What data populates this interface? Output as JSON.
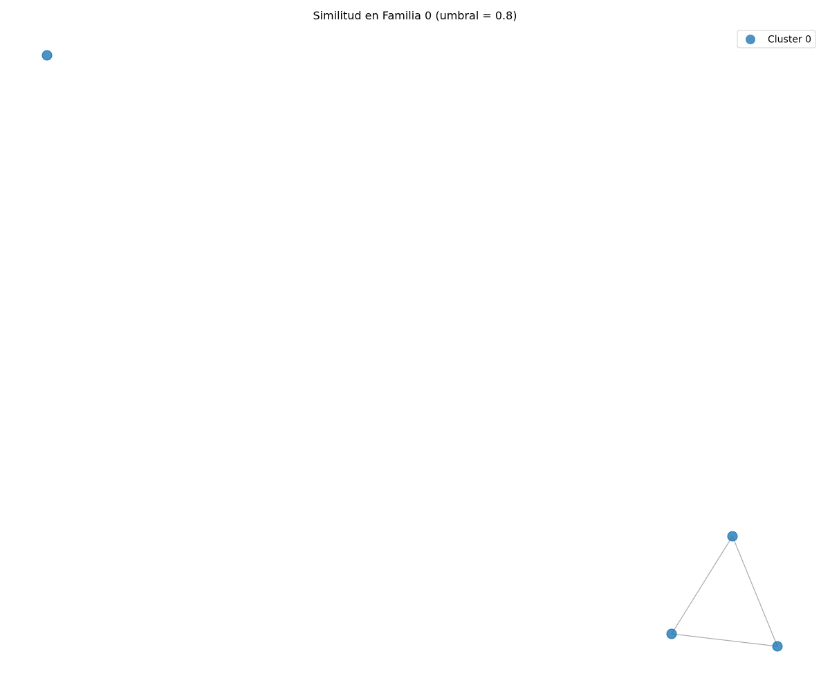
{
  "chart_data": {
    "type": "scatter",
    "title": "Similitud en Familia 0 (umbral = 0.8)",
    "grid": false,
    "legend_position": "top-right",
    "axes_visible": false,
    "node_color": "#1f77b4",
    "edge_color": "#aaaaaa",
    "series": [
      {
        "name": "Cluster 0",
        "color": "#1f77b4"
      }
    ],
    "nodes": [
      {
        "id": "n0",
        "cluster": "Cluster 0"
      },
      {
        "id": "n1",
        "cluster": "Cluster 0"
      },
      {
        "id": "n2",
        "cluster": "Cluster 0"
      },
      {
        "id": "n3",
        "cluster": "Cluster 0"
      }
    ],
    "edges": [
      {
        "source": "n1",
        "target": "n2"
      },
      {
        "source": "n1",
        "target": "n3"
      },
      {
        "source": "n2",
        "target": "n3"
      }
    ]
  }
}
